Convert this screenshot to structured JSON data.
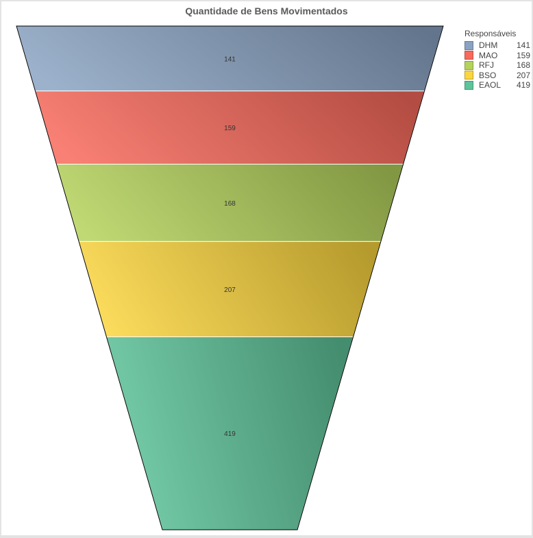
{
  "chart_data": {
    "type": "funnel",
    "title": "Quantidade de Bens Movimentados",
    "legend_title": "Responsáveis",
    "legend_position": "top-right",
    "categories": [
      "DHM",
      "MAO",
      "RFJ",
      "BSO",
      "EAOL"
    ],
    "values": [
      141,
      159,
      168,
      207,
      419
    ],
    "colors": [
      "#8aa3c2",
      "#f86a5c",
      "#b5d25b",
      "#fcd63f",
      "#5ec49a"
    ],
    "value_labels": [
      "141",
      "159",
      "168",
      "207",
      "419"
    ]
  }
}
